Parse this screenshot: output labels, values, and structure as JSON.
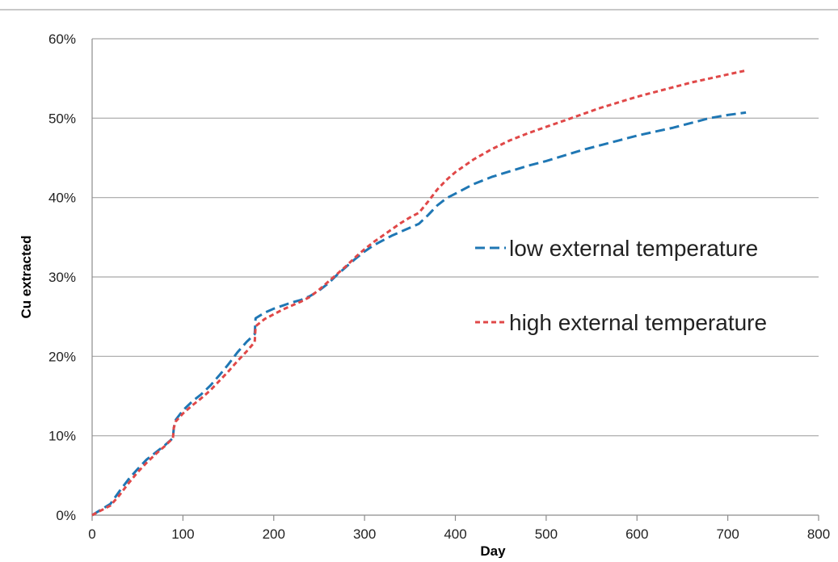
{
  "chart_data": {
    "type": "line",
    "xlabel": "Day",
    "ylabel": "Cu extracted",
    "xlim": [
      0,
      800
    ],
    "ylim": [
      0,
      0.6
    ],
    "x_ticks": [
      "0",
      "100",
      "200",
      "300",
      "400",
      "500",
      "600",
      "700",
      "800"
    ],
    "y_ticks": [
      "0%",
      "10%",
      "20%",
      "30%",
      "40%",
      "50%",
      "60%"
    ],
    "grid": "horizontal",
    "legend_position": "right-center",
    "series": [
      {
        "name": "low external temperature",
        "color": "#1f77b4",
        "dash": "long",
        "points": [
          [
            0,
            0.0
          ],
          [
            10,
            0.007
          ],
          [
            20,
            0.014
          ],
          [
            30,
            0.03
          ],
          [
            40,
            0.045
          ],
          [
            50,
            0.058
          ],
          [
            60,
            0.07
          ],
          [
            70,
            0.079
          ],
          [
            80,
            0.088
          ],
          [
            89,
            0.097
          ],
          [
            90,
            0.11
          ],
          [
            92,
            0.12
          ],
          [
            100,
            0.132
          ],
          [
            110,
            0.143
          ],
          [
            120,
            0.152
          ],
          [
            130,
            0.163
          ],
          [
            140,
            0.176
          ],
          [
            150,
            0.19
          ],
          [
            160,
            0.205
          ],
          [
            170,
            0.218
          ],
          [
            179,
            0.228
          ],
          [
            180,
            0.248
          ],
          [
            190,
            0.255
          ],
          [
            200,
            0.26
          ],
          [
            210,
            0.264
          ],
          [
            220,
            0.268
          ],
          [
            230,
            0.271
          ],
          [
            240,
            0.276
          ],
          [
            250,
            0.283
          ],
          [
            260,
            0.292
          ],
          [
            270,
            0.303
          ],
          [
            280,
            0.313
          ],
          [
            290,
            0.323
          ],
          [
            300,
            0.332
          ],
          [
            310,
            0.34
          ],
          [
            320,
            0.346
          ],
          [
            330,
            0.352
          ],
          [
            340,
            0.357
          ],
          [
            350,
            0.362
          ],
          [
            360,
            0.367
          ],
          [
            370,
            0.378
          ],
          [
            380,
            0.39
          ],
          [
            390,
            0.399
          ],
          [
            400,
            0.405
          ],
          [
            420,
            0.417
          ],
          [
            440,
            0.426
          ],
          [
            460,
            0.433
          ],
          [
            480,
            0.44
          ],
          [
            500,
            0.446
          ],
          [
            520,
            0.453
          ],
          [
            540,
            0.46
          ],
          [
            560,
            0.466
          ],
          [
            580,
            0.472
          ],
          [
            600,
            0.478
          ],
          [
            620,
            0.483
          ],
          [
            640,
            0.488
          ],
          [
            660,
            0.494
          ],
          [
            680,
            0.5
          ],
          [
            700,
            0.504
          ],
          [
            720,
            0.507
          ]
        ]
      },
      {
        "name": "high external temperature",
        "color": "#e04848",
        "dash": "short",
        "points": [
          [
            0,
            0.0
          ],
          [
            10,
            0.006
          ],
          [
            20,
            0.012
          ],
          [
            30,
            0.025
          ],
          [
            40,
            0.04
          ],
          [
            50,
            0.054
          ],
          [
            60,
            0.066
          ],
          [
            70,
            0.077
          ],
          [
            80,
            0.087
          ],
          [
            89,
            0.097
          ],
          [
            90,
            0.11
          ],
          [
            92,
            0.118
          ],
          [
            100,
            0.128
          ],
          [
            110,
            0.138
          ],
          [
            120,
            0.147
          ],
          [
            130,
            0.157
          ],
          [
            140,
            0.169
          ],
          [
            150,
            0.181
          ],
          [
            160,
            0.194
          ],
          [
            170,
            0.206
          ],
          [
            179,
            0.218
          ],
          [
            180,
            0.238
          ],
          [
            190,
            0.247
          ],
          [
            200,
            0.253
          ],
          [
            210,
            0.259
          ],
          [
            220,
            0.264
          ],
          [
            230,
            0.269
          ],
          [
            240,
            0.275
          ],
          [
            250,
            0.284
          ],
          [
            260,
            0.294
          ],
          [
            270,
            0.304
          ],
          [
            280,
            0.314
          ],
          [
            290,
            0.325
          ],
          [
            300,
            0.335
          ],
          [
            310,
            0.344
          ],
          [
            320,
            0.352
          ],
          [
            330,
            0.36
          ],
          [
            340,
            0.368
          ],
          [
            350,
            0.375
          ],
          [
            360,
            0.381
          ],
          [
            370,
            0.395
          ],
          [
            380,
            0.41
          ],
          [
            390,
            0.422
          ],
          [
            400,
            0.432
          ],
          [
            420,
            0.448
          ],
          [
            440,
            0.461
          ],
          [
            460,
            0.472
          ],
          [
            480,
            0.481
          ],
          [
            500,
            0.489
          ],
          [
            520,
            0.497
          ],
          [
            540,
            0.505
          ],
          [
            560,
            0.513
          ],
          [
            580,
            0.52
          ],
          [
            600,
            0.527
          ],
          [
            620,
            0.533
          ],
          [
            640,
            0.539
          ],
          [
            660,
            0.545
          ],
          [
            680,
            0.55
          ],
          [
            700,
            0.555
          ],
          [
            720,
            0.56
          ]
        ]
      }
    ]
  }
}
